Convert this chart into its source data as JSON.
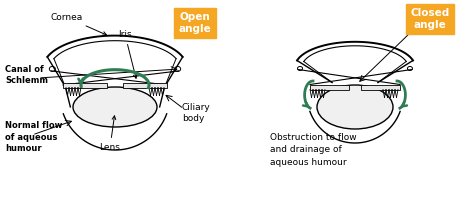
{
  "bg_color": "#ffffff",
  "label_color": "#000000",
  "green_color": "#2e7d52",
  "orange_color": "#f5a623",
  "open_angle_label": "Open\nangle",
  "closed_angle_label": "Closed\nangle",
  "cornea_label": "Cornea",
  "iris_label": "Iris",
  "canal_label": "Canal of\nSchlemm",
  "lens_label": "Lens",
  "ciliary_label": "Ciliary\nbody",
  "normal_flow_label": "Normal flow\nof aqueous\nhumour",
  "obstruction_label": "Obstruction to flow\nand drainage of\naqueous humour",
  "fig_width": 4.74,
  "fig_height": 2.15,
  "dpi": 100
}
